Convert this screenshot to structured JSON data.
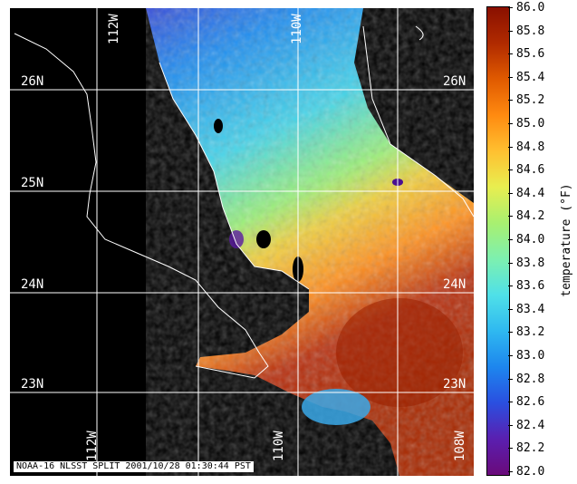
{
  "map": {
    "latitude_labels": [
      {
        "text": "26N",
        "row": 0
      },
      {
        "text": "25N",
        "row": 1
      },
      {
        "text": "24N",
        "row": 2
      },
      {
        "text": "23N",
        "row": 3
      }
    ],
    "longitude_labels_top": [
      "112W",
      "110W"
    ],
    "longitude_labels_bottom": [
      "112W",
      "110W",
      "108W"
    ],
    "caption": "NOAA-16 NLSST SPLIT 2001/10/28 01:30:44 PST",
    "colors": {
      "land": "#000000",
      "coastline": "#ffffff",
      "grid": "#ffffff"
    }
  },
  "colorbar": {
    "title": "temperature (°F)",
    "min": 82.0,
    "max": 86.0,
    "ticks": [
      "86.0",
      "85.8",
      "85.6",
      "85.4",
      "85.2",
      "85.0",
      "84.8",
      "84.6",
      "84.4",
      "84.2",
      "84.0",
      "83.8",
      "83.6",
      "83.4",
      "83.2",
      "83.0",
      "82.8",
      "82.6",
      "82.4",
      "82.2",
      "82.0"
    ],
    "gradient": [
      "#6a0a7a",
      "#5a1fb0",
      "#2a4fe0",
      "#1d86ee",
      "#2fb8f0",
      "#4fe0e8",
      "#7df0b0",
      "#a8f070",
      "#e8ee50",
      "#ffc030",
      "#ff8a10",
      "#e05a00",
      "#b02a00",
      "#8a1000"
    ]
  }
}
